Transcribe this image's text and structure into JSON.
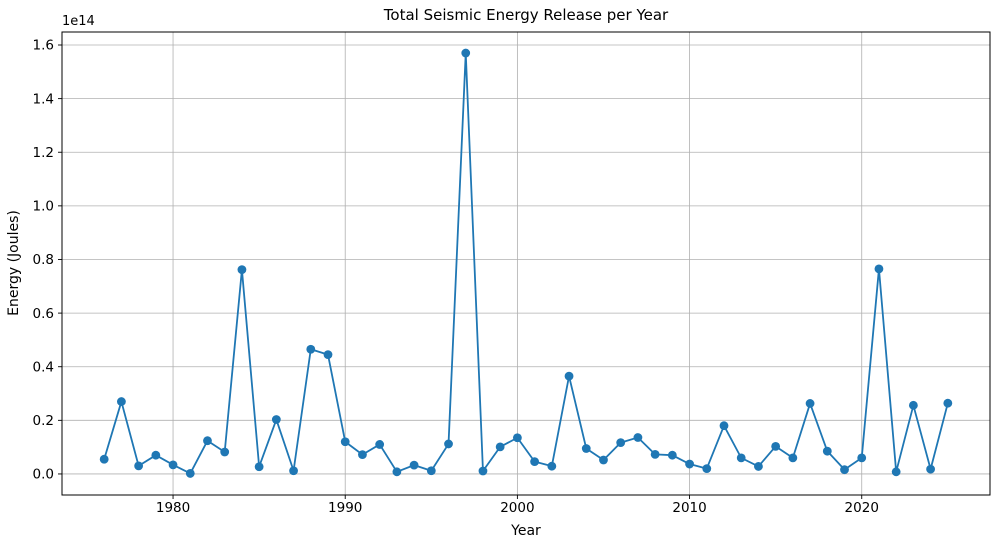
{
  "chart_data": {
    "type": "line",
    "title": "Total Seismic Energy Release per Year",
    "xlabel": "Year",
    "ylabel": "Energy (Joules)",
    "offset_text": "1e14",
    "line_color": "#1f77b4",
    "grid_color": "#b0b0b0",
    "spine_color": "#000000",
    "grid": true,
    "legend": "none",
    "marker": "circle",
    "xlim": [
      1973.55,
      2027.45
    ],
    "ylim": [
      -7850000000000.0,
      164850000000000.0
    ],
    "xticks": [
      1980,
      1990,
      2000,
      2010,
      2020
    ],
    "xtick_labels": [
      "1980",
      "1990",
      "2000",
      "2010",
      "2020"
    ],
    "yticks": [
      0,
      20000000000000.0,
      40000000000000.0,
      60000000000000.0,
      80000000000000.0,
      100000000000000.0,
      120000000000000.0,
      140000000000000.0,
      160000000000000.0
    ],
    "ytick_labels": [
      "0.0",
      "0.2",
      "0.4",
      "0.6",
      "0.8",
      "1.0",
      "1.2",
      "1.4",
      "1.6"
    ],
    "x": [
      1976,
      1977,
      1978,
      1979,
      1980,
      1981,
      1982,
      1983,
      1984,
      1985,
      1986,
      1987,
      1988,
      1989,
      1990,
      1991,
      1992,
      1993,
      1994,
      1995,
      1996,
      1997,
      1998,
      1999,
      2000,
      2001,
      2002,
      2003,
      2004,
      2005,
      2006,
      2007,
      2008,
      2009,
      2010,
      2011,
      2012,
      2013,
      2014,
      2015,
      2016,
      2017,
      2018,
      2019,
      2020,
      2021,
      2022,
      2023,
      2024,
      2025
    ],
    "values": [
      5500000000000.0,
      27000000000000.0,
      3000000000000.0,
      7000000000000.0,
      3400000000000.0,
      200000000000.0,
      12400000000000.0,
      8200000000000.0,
      76200000000000.0,
      2700000000000.0,
      20300000000000.0,
      1200000000000.0,
      46500000000000.0,
      44500000000000.0,
      12000000000000.0,
      7200000000000.0,
      11000000000000.0,
      800000000000.0,
      3300000000000.0,
      1200000000000.0,
      11200000000000.0,
      157000000000000.0,
      1100000000000.0,
      10100000000000.0,
      13500000000000.0,
      4600000000000.0,
      2900000000000.0,
      36500000000000.0,
      9500000000000.0,
      5200000000000.0,
      11700000000000.0,
      13600000000000.0,
      7300000000000.0,
      7000000000000.0,
      3700000000000.0,
      2000000000000.0,
      18000000000000.0,
      6000000000000.0,
      2800000000000.0,
      10300000000000.0,
      6000000000000.0,
      26300000000000.0,
      8500000000000.0,
      1600000000000.0,
      6000000000000.0,
      76500000000000.0,
      800000000000.0,
      25600000000000.0,
      1800000000000.0,
      26400000000000.0
    ]
  }
}
